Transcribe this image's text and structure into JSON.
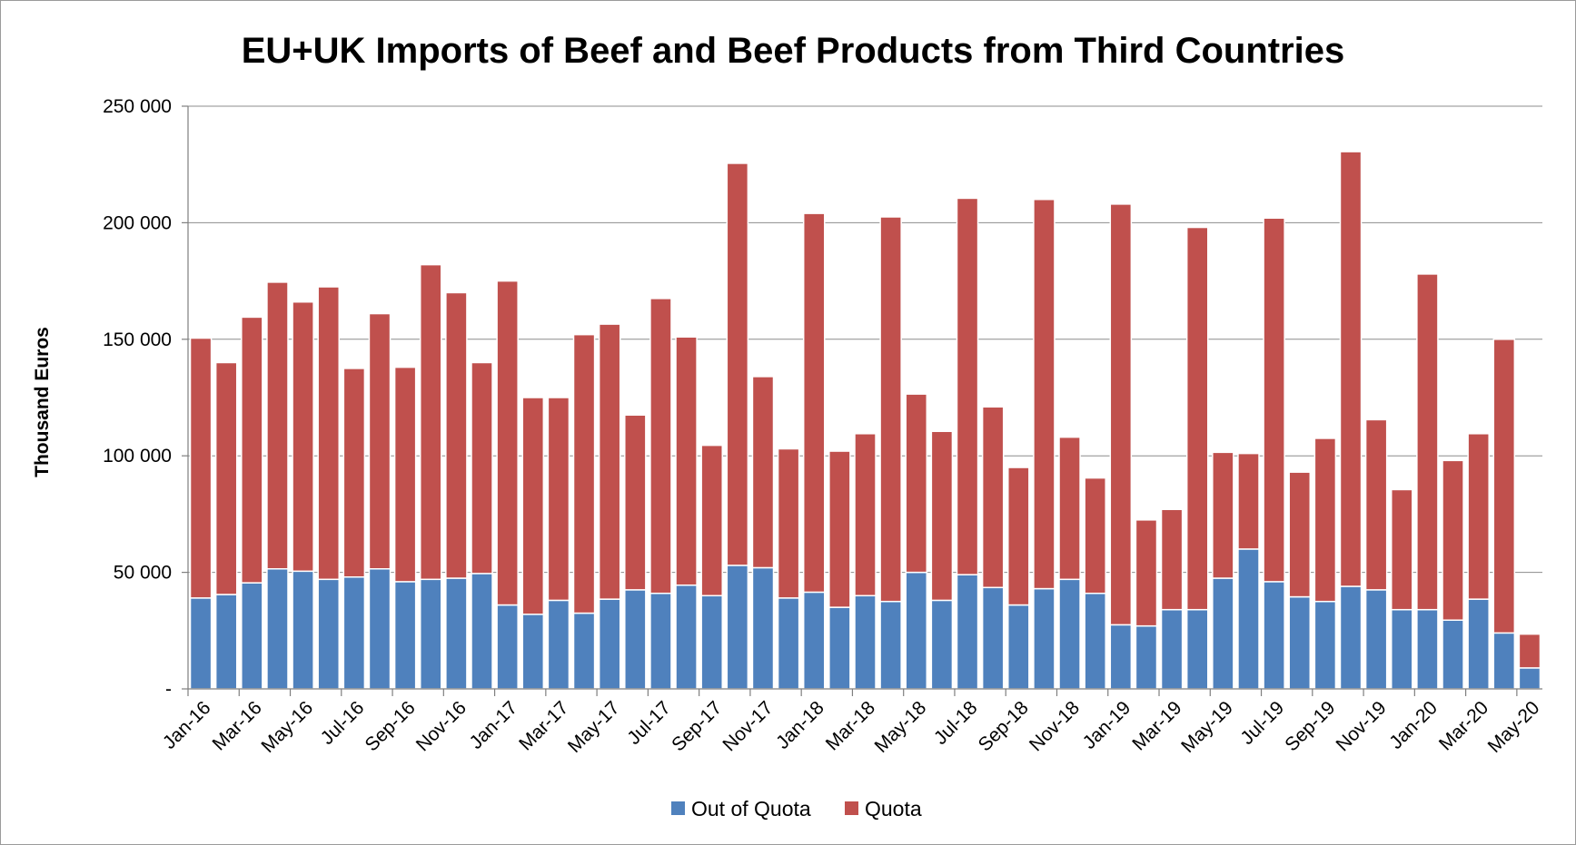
{
  "chart_data": {
    "type": "bar",
    "stacked": true,
    "title": "EU+UK Imports of Beef and Beef Products from Third Countries",
    "ylabel": "Thousand Euros",
    "xlabel": "",
    "ylim": [
      0,
      250000
    ],
    "yticks": [
      0,
      50000,
      100000,
      150000,
      200000,
      250000
    ],
    "ytick_labels": [
      "-",
      "50 000",
      "100 000",
      "150 000",
      "200 000",
      "250 000"
    ],
    "grid": "horizontal",
    "legend_position": "bottom",
    "categories": [
      "Jan-16",
      "Feb-16",
      "Mar-16",
      "Apr-16",
      "May-16",
      "Jun-16",
      "Jul-16",
      "Aug-16",
      "Sep-16",
      "Oct-16",
      "Nov-16",
      "Dec-16",
      "Jan-17",
      "Feb-17",
      "Mar-17",
      "Apr-17",
      "May-17",
      "Jun-17",
      "Jul-17",
      "Aug-17",
      "Sep-17",
      "Oct-17",
      "Nov-17",
      "Dec-17",
      "Jan-18",
      "Feb-18",
      "Mar-18",
      "Apr-18",
      "May-18",
      "Jun-18",
      "Jul-18",
      "Aug-18",
      "Sep-18",
      "Oct-18",
      "Nov-18",
      "Dec-18",
      "Jan-19",
      "Feb-19",
      "Mar-19",
      "Apr-19",
      "May-19",
      "Jun-19",
      "Jul-19",
      "Aug-19",
      "Sep-19",
      "Oct-19",
      "Nov-19",
      "Dec-19",
      "Jan-20",
      "Feb-20",
      "Mar-20",
      "Apr-20",
      "May-20"
    ],
    "tick_labels": [
      "Jan-16",
      "Mar-16",
      "May-16",
      "Jul-16",
      "Sep-16",
      "Nov-16",
      "Jan-17",
      "Mar-17",
      "May-17",
      "Jul-17",
      "Sep-17",
      "Nov-17",
      "Jan-18",
      "Mar-18",
      "May-18",
      "Jul-18",
      "Sep-18",
      "Nov-18",
      "Jan-19",
      "Mar-19",
      "May-19",
      "Jul-19",
      "Sep-19",
      "Nov-19",
      "Jan-20",
      "Mar-20",
      "May-20"
    ],
    "series": [
      {
        "name": "Out of Quota",
        "color": "#4f81bd",
        "values": [
          39000,
          40500,
          45500,
          51500,
          50500,
          47000,
          48000,
          51500,
          46000,
          47000,
          47500,
          49500,
          36000,
          32000,
          38000,
          32500,
          38500,
          42500,
          41000,
          44500,
          40000,
          53000,
          52000,
          39000,
          41500,
          35000,
          40000,
          37500,
          50000,
          38000,
          49000,
          43500,
          36000,
          43000,
          47000,
          41000,
          27500,
          27000,
          34000,
          34000,
          47500,
          60000,
          46000,
          39500,
          37500,
          44000,
          42500,
          34000,
          34000,
          29500,
          38500,
          24000,
          9000
        ]
      },
      {
        "name": "Quota",
        "color": "#c0504d",
        "values": [
          111500,
          99500,
          114000,
          123000,
          115500,
          125500,
          89500,
          109500,
          92000,
          135000,
          122500,
          90500,
          139000,
          93000,
          87000,
          119500,
          118000,
          75000,
          126500,
          106500,
          64500,
          172500,
          82000,
          64000,
          162500,
          67000,
          69500,
          165000,
          76500,
          72500,
          161500,
          77500,
          59000,
          167000,
          61000,
          49500,
          180500,
          45500,
          43000,
          164000,
          54000,
          41000,
          156000,
          53500,
          70000,
          186500,
          73000,
          51500,
          144000,
          68500,
          71000,
          126000,
          14500
        ]
      }
    ]
  }
}
